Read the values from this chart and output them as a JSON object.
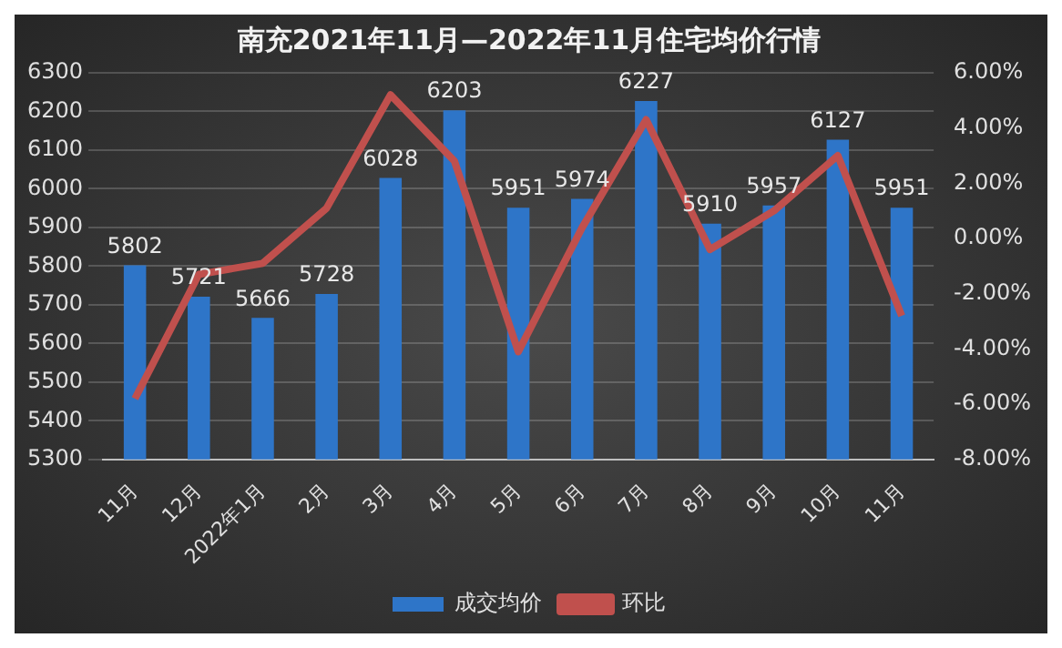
{
  "chart_data": {
    "type": "bar",
    "title": "南充2021年11月—2022年11月住宅均价行情",
    "categories": [
      "11月",
      "12月",
      "2022年1月",
      "2月",
      "3月",
      "4月",
      "5月",
      "6月",
      "7月",
      "8月",
      "9月",
      "10月",
      "11月"
    ],
    "series": [
      {
        "name": "成交均价",
        "color": "#2e75c8",
        "values": [
          5802,
          5721,
          5666,
          5728,
          6028,
          6203,
          5951,
          5974,
          6227,
          5910,
          5957,
          6127,
          5951
        ],
        "value_labels": [
          "5802",
          "5721",
          "5666",
          "5728",
          "6028",
          "6203",
          "5951",
          "5974",
          "6227",
          "5910",
          "5957",
          "6127",
          "5951"
        ]
      },
      {
        "name": "环比",
        "type": "line",
        "axis": "y2",
        "color": "#c0504d",
        "values": [
          -5.8,
          -1.3,
          -0.9,
          1.1,
          5.2,
          2.8,
          -4.1,
          0.4,
          4.3,
          -0.4,
          1.0,
          3.0,
          -2.8
        ]
      }
    ],
    "ylim": [
      5300,
      6300
    ],
    "yticks": [
      5300,
      5400,
      5500,
      5600,
      5700,
      5800,
      5900,
      6000,
      6100,
      6200,
      6300
    ],
    "y2lim": [
      -8,
      6
    ],
    "y2ticks": [
      {
        "value": -8,
        "label": "-8.00%"
      },
      {
        "value": -6,
        "label": "-6.00%"
      },
      {
        "value": -4,
        "label": "-4.00%"
      },
      {
        "value": -2,
        "label": "-2.00%"
      },
      {
        "value": 0,
        "label": "0.00%"
      },
      {
        "value": 2,
        "label": "2.00%"
      },
      {
        "value": 4,
        "label": "4.00%"
      },
      {
        "value": 6,
        "label": "6.00%"
      }
    ],
    "grid": "y",
    "legend": "bottom",
    "marker": "none"
  }
}
